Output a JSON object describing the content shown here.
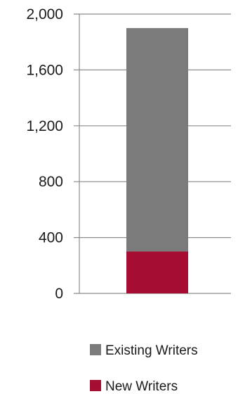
{
  "chart_data": {
    "type": "bar",
    "stacked": true,
    "categories": [
      ""
    ],
    "series": [
      {
        "name": "New Writers",
        "values": [
          300
        ],
        "color": "#a50d32"
      },
      {
        "name": "Existing Writers",
        "values": [
          1600
        ],
        "color": "#7b7b7b"
      }
    ],
    "title": "",
    "xlabel": "",
    "ylabel": "",
    "ylim": [
      0,
      2000
    ],
    "yticks": [
      0,
      400,
      800,
      1200,
      1600,
      2000
    ],
    "ytick_labels": [
      "0",
      "400",
      "800",
      "1,200",
      "1,600",
      "2,000"
    ],
    "grid": true,
    "legend_position": "bottom",
    "legend": [
      {
        "label": "Existing Writers",
        "color": "#7b7b7b"
      },
      {
        "label": "New Writers",
        "color": "#a50d32"
      }
    ]
  }
}
